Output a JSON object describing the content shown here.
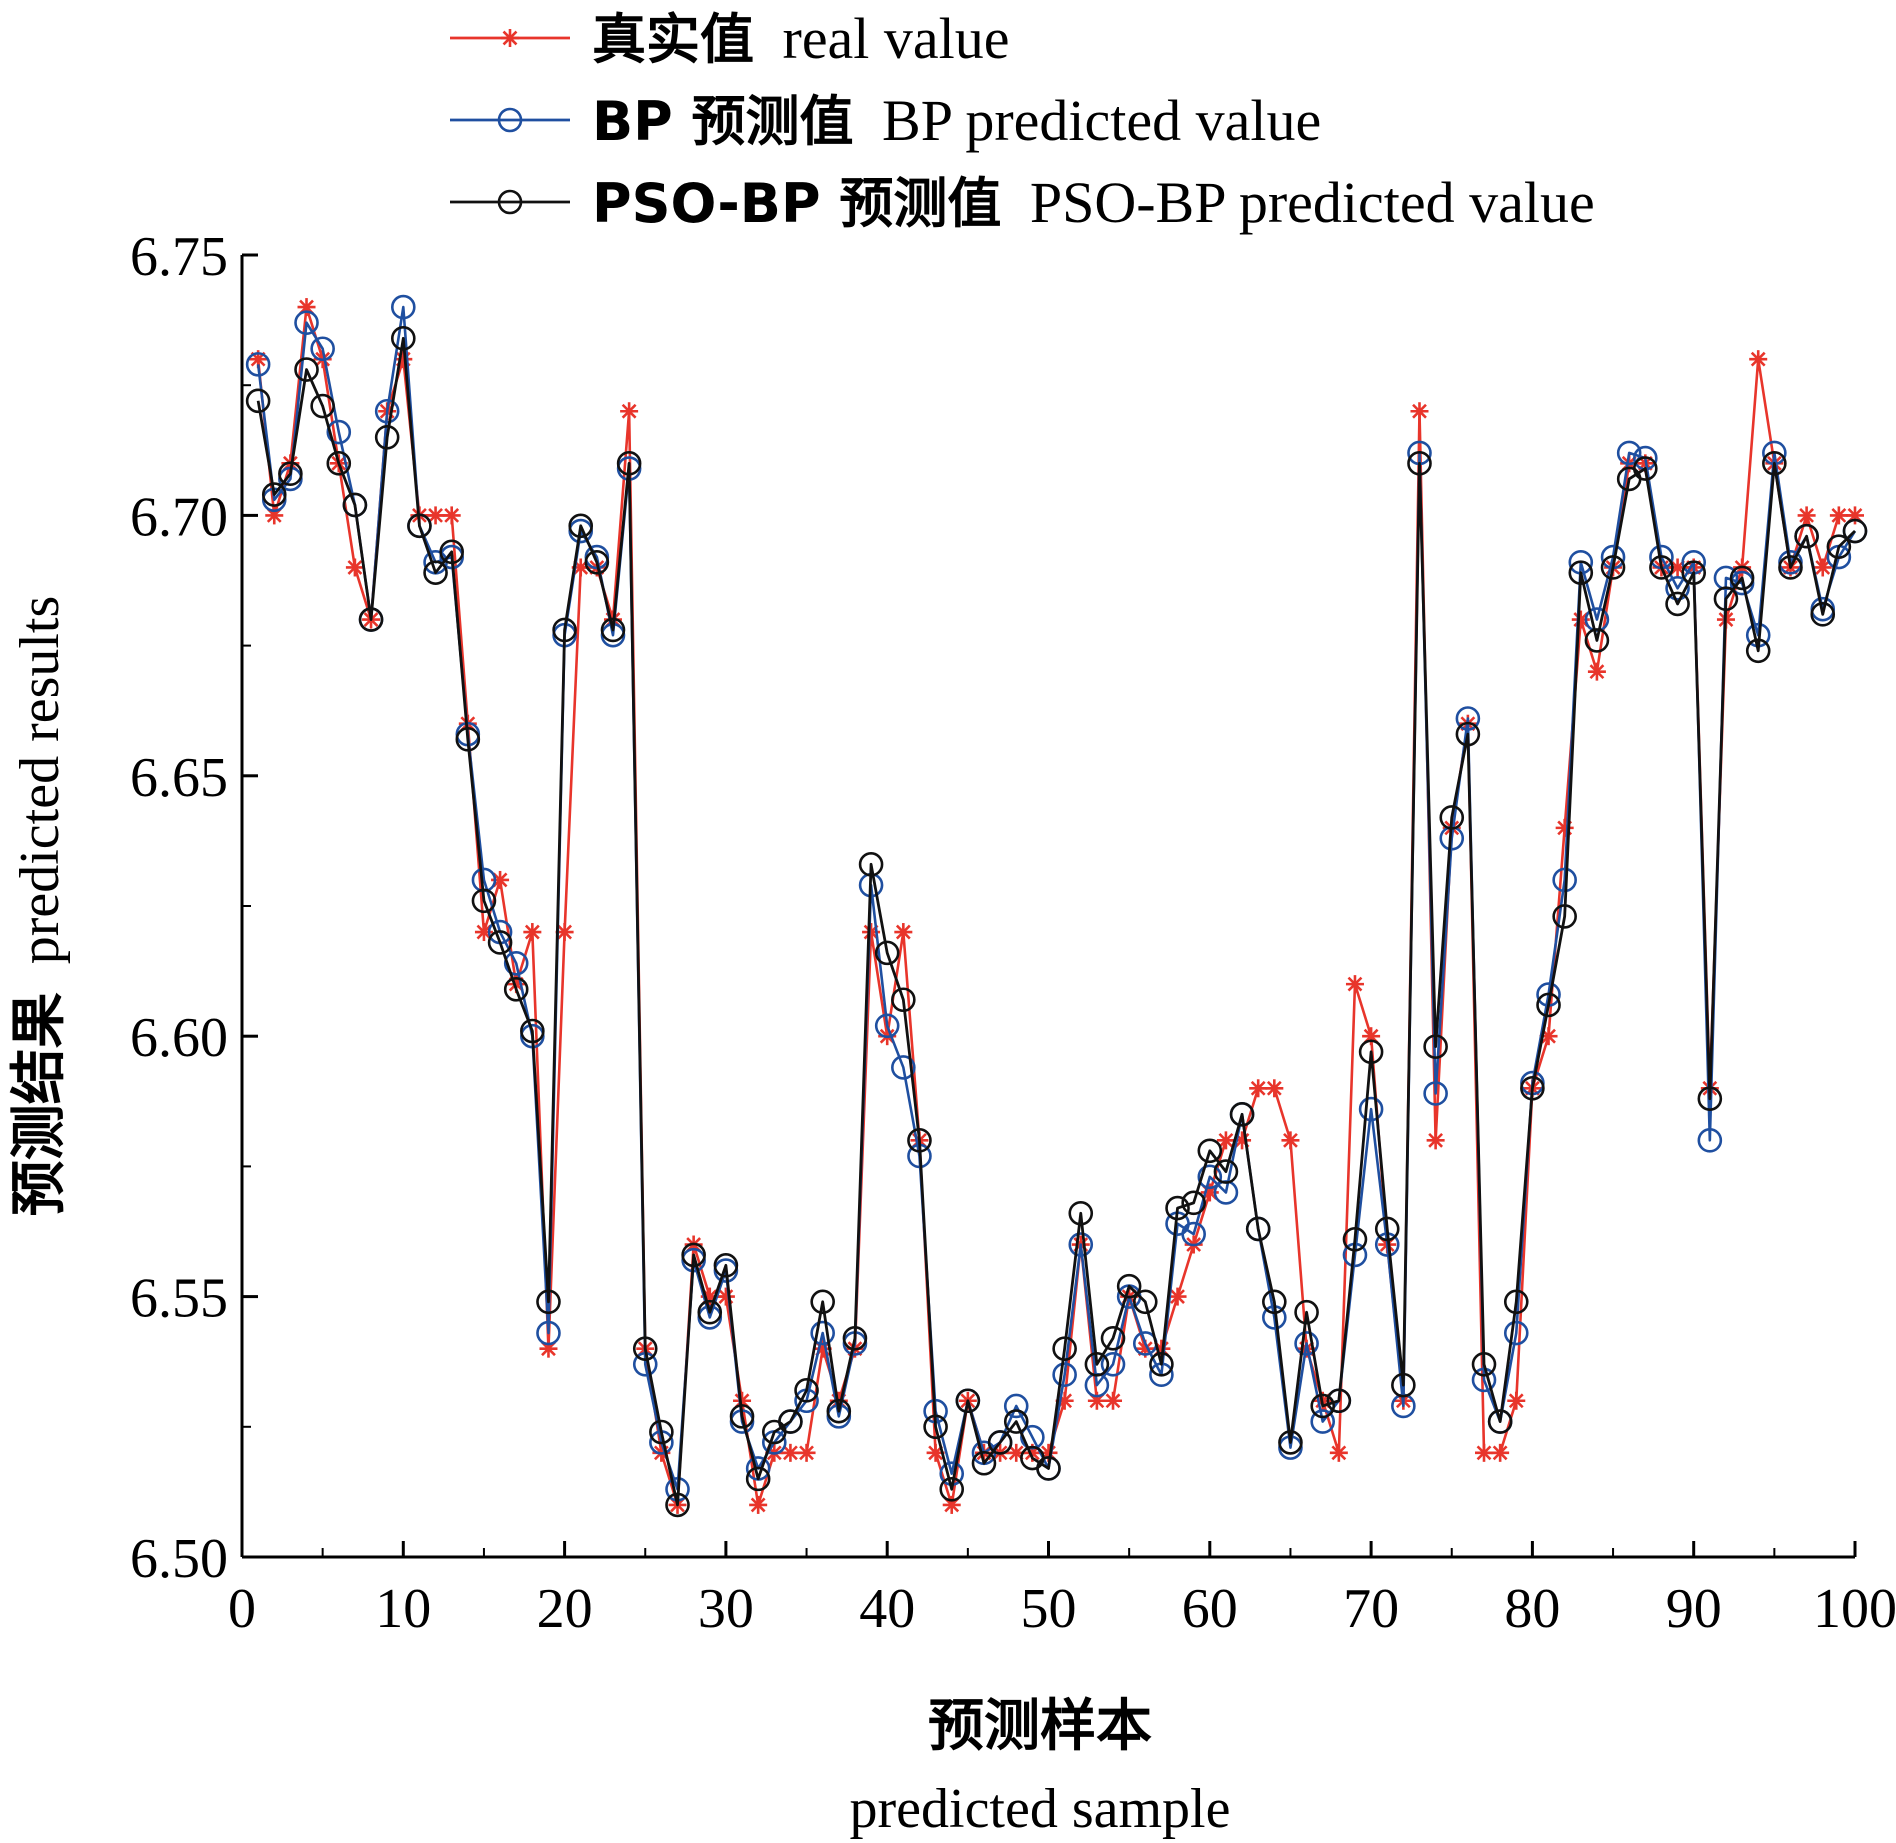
{
  "chart_data": {
    "type": "line",
    "xlabel": {
      "cn": "预测样本",
      "en": "predicted sample"
    },
    "ylabel": {
      "cn": "预测结果",
      "en": "predicted results"
    },
    "xlim": [
      0,
      100
    ],
    "ylim": [
      6.5,
      6.75
    ],
    "xticks": [
      "0",
      "10",
      "20",
      "30",
      "40",
      "50",
      "60",
      "70",
      "80",
      "90",
      "100"
    ],
    "yticks": [
      "6.50",
      "6.55",
      "6.60",
      "6.65",
      "6.70",
      "6.75"
    ],
    "grid": false,
    "legend_position": "top",
    "x": [
      1,
      2,
      3,
      4,
      5,
      6,
      7,
      8,
      9,
      10,
      11,
      12,
      13,
      14,
      15,
      16,
      17,
      18,
      19,
      20,
      21,
      22,
      23,
      24,
      25,
      26,
      27,
      28,
      29,
      30,
      31,
      32,
      33,
      34,
      35,
      36,
      37,
      38,
      39,
      40,
      41,
      42,
      43,
      44,
      45,
      46,
      47,
      48,
      49,
      50,
      51,
      52,
      53,
      54,
      55,
      56,
      57,
      58,
      59,
      60,
      61,
      62,
      63,
      64,
      65,
      66,
      67,
      68,
      69,
      70,
      71,
      72,
      73,
      74,
      75,
      76,
      77,
      78,
      79,
      80,
      81,
      82,
      83,
      84,
      85,
      86,
      87,
      88,
      89,
      90,
      91,
      92,
      93,
      94,
      95,
      96,
      97,
      98,
      99,
      100
    ],
    "series": [
      {
        "name_cn": "真实值",
        "name_en": "real value",
        "color": "#e8352b",
        "marker": "asterisk",
        "values": [
          6.73,
          6.7,
          6.71,
          6.74,
          6.73,
          6.71,
          6.69,
          6.68,
          6.72,
          6.73,
          6.7,
          6.7,
          6.7,
          6.66,
          6.62,
          6.63,
          6.61,
          6.62,
          6.54,
          6.62,
          6.69,
          6.69,
          6.68,
          6.72,
          6.54,
          6.52,
          6.51,
          6.56,
          6.55,
          6.55,
          6.53,
          6.51,
          6.52,
          6.52,
          6.52,
          6.54,
          6.53,
          6.54,
          6.62,
          6.6,
          6.62,
          6.58,
          6.52,
          6.51,
          6.53,
          6.52,
          6.52,
          6.52,
          6.52,
          6.52,
          6.53,
          6.56,
          6.53,
          6.53,
          6.55,
          6.54,
          6.54,
          6.55,
          6.56,
          6.57,
          6.58,
          6.58,
          6.59,
          6.59,
          6.58,
          6.54,
          6.53,
          6.52,
          6.61,
          6.6,
          6.56,
          6.53,
          6.72,
          6.58,
          6.64,
          6.66,
          6.52,
          6.52,
          6.53,
          6.59,
          6.6,
          6.64,
          6.68,
          6.67,
          6.69,
          6.71,
          6.71,
          6.69,
          6.69,
          6.69,
          6.59,
          6.68,
          6.69,
          6.73,
          6.71,
          6.69,
          6.7,
          6.69,
          6.7,
          6.7
        ]
      },
      {
        "name_cn": "BP 预测值",
        "name_en": "BP predicted value",
        "color": "#1f4fa0",
        "marker": "circle",
        "values": [
          6.729,
          6.703,
          6.707,
          6.737,
          6.732,
          6.716,
          6.702,
          6.68,
          6.72,
          6.74,
          6.698,
          6.691,
          6.692,
          6.658,
          6.63,
          6.62,
          6.614,
          6.6,
          6.543,
          6.677,
          6.697,
          6.692,
          6.677,
          6.709,
          6.537,
          6.522,
          6.513,
          6.557,
          6.546,
          6.555,
          6.526,
          6.517,
          6.522,
          6.526,
          6.53,
          6.543,
          6.527,
          6.541,
          6.629,
          6.602,
          6.594,
          6.577,
          6.528,
          6.516,
          6.53,
          6.52,
          6.522,
          6.529,
          6.523,
          6.517,
          6.535,
          6.56,
          6.533,
          6.537,
          6.55,
          6.541,
          6.535,
          6.564,
          6.562,
          6.573,
          6.57,
          6.585,
          6.563,
          6.546,
          6.521,
          6.541,
          6.526,
          6.53,
          6.558,
          6.586,
          6.56,
          6.529,
          6.712,
          6.589,
          6.638,
          6.661,
          6.534,
          6.526,
          6.543,
          6.591,
          6.608,
          6.63,
          6.691,
          6.68,
          6.692,
          6.712,
          6.711,
          6.692,
          6.686,
          6.691,
          6.58,
          6.688,
          6.687,
          6.677,
          6.712,
          6.691,
          6.696,
          6.682,
          6.692,
          6.697
        ]
      },
      {
        "name_cn": "PSO-BP 预测值",
        "name_en": "PSO-BP predicted value",
        "color": "#111111",
        "marker": "circle",
        "values": [
          6.722,
          6.704,
          6.708,
          6.728,
          6.721,
          6.71,
          6.702,
          6.68,
          6.715,
          6.734,
          6.698,
          6.689,
          6.693,
          6.657,
          6.626,
          6.618,
          6.609,
          6.601,
          6.549,
          6.678,
          6.698,
          6.691,
          6.678,
          6.71,
          6.54,
          6.524,
          6.51,
          6.558,
          6.547,
          6.556,
          6.527,
          6.515,
          6.524,
          6.526,
          6.532,
          6.549,
          6.528,
          6.542,
          6.633,
          6.616,
          6.607,
          6.58,
          6.525,
          6.513,
          6.53,
          6.518,
          6.522,
          6.526,
          6.519,
          6.517,
          6.54,
          6.566,
          6.537,
          6.542,
          6.552,
          6.549,
          6.537,
          6.567,
          6.568,
          6.578,
          6.574,
          6.585,
          6.563,
          6.549,
          6.522,
          6.547,
          6.529,
          6.53,
          6.561,
          6.597,
          6.563,
          6.533,
          6.71,
          6.598,
          6.642,
          6.658,
          6.537,
          6.526,
          6.549,
          6.59,
          6.606,
          6.623,
          6.689,
          6.676,
          6.69,
          6.707,
          6.709,
          6.69,
          6.683,
          6.689,
          6.588,
          6.684,
          6.688,
          6.674,
          6.71,
          6.69,
          6.696,
          6.681,
          6.694,
          6.697
        ]
      }
    ]
  }
}
